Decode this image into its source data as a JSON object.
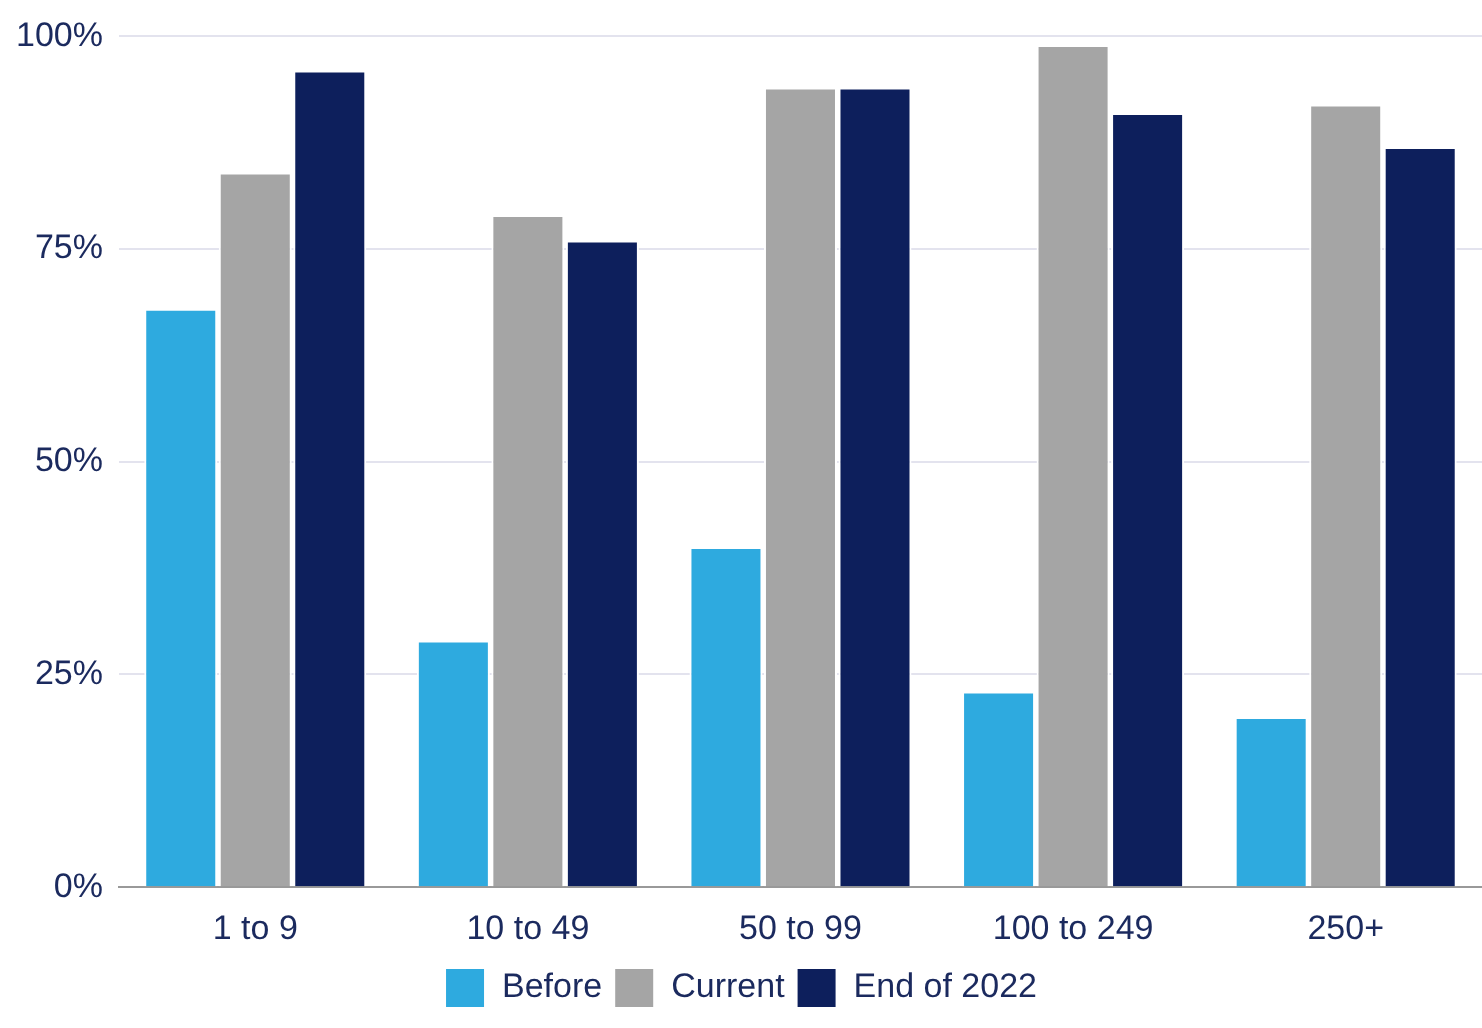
{
  "chart_data": {
    "type": "bar",
    "categories": [
      "1 to 9",
      "10 to 49",
      "50 to 99",
      "100 to 249",
      "250+"
    ],
    "series": [
      {
        "name": "Before",
        "color": "#2eaadf",
        "values": [
          68,
          29,
          40,
          23,
          20
        ]
      },
      {
        "name": "Current",
        "color": "#a5a5a5",
        "values": [
          84,
          79,
          94,
          99,
          92
        ]
      },
      {
        "name": "End of 2022",
        "color": "#0d1f5c",
        "values": [
          96,
          76,
          94,
          91,
          87
        ]
      }
    ],
    "ylim": [
      0,
      100
    ],
    "yticks": [
      {
        "value": 0,
        "label": "0%"
      },
      {
        "value": 25,
        "label": "25%"
      },
      {
        "value": 50,
        "label": "50%"
      },
      {
        "value": 75,
        "label": "75%"
      },
      {
        "value": 100,
        "label": "100%"
      }
    ],
    "grid": "y",
    "legend": "bottom"
  }
}
